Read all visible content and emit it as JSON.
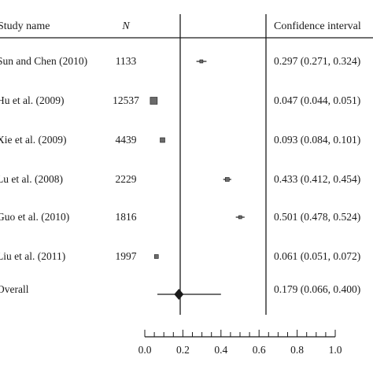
{
  "chart_data": {
    "type": "forest",
    "headers": {
      "study": "Study name",
      "n": "N",
      "ci": "Confidence interval"
    },
    "x_axis": {
      "range": [
        0,
        1
      ],
      "ticks": [
        "0.0",
        "0.2",
        "0.4",
        "0.6",
        "0.8",
        "1.0"
      ],
      "tick_values": [
        0,
        0.2,
        0.4,
        0.6,
        0.8,
        1.0
      ]
    },
    "studies": [
      {
        "name": "Sun and Chen (2010)",
        "n": "1133",
        "estimate": 0.297,
        "lower": 0.271,
        "upper": 0.324,
        "ci_text": "0.297 (0.271, 0.324)"
      },
      {
        "name": "Hu et al. (2009)",
        "n": "12537",
        "estimate": 0.047,
        "lower": 0.044,
        "upper": 0.051,
        "ci_text": "0.047 (0.044, 0.051)"
      },
      {
        "name": "Xie et al. (2009)",
        "n": "4439",
        "estimate": 0.093,
        "lower": 0.084,
        "upper": 0.101,
        "ci_text": "0.093 (0.084, 0.101)"
      },
      {
        "name": "Lu et al. (2008)",
        "n": "2229",
        "estimate": 0.433,
        "lower": 0.412,
        "upper": 0.454,
        "ci_text": "0.433 (0.412, 0.454)"
      },
      {
        "name": "Guo et al. (2010)",
        "n": "1816",
        "estimate": 0.501,
        "lower": 0.478,
        "upper": 0.524,
        "ci_text": "0.501 (0.478, 0.524)"
      },
      {
        "name": "Liu et al. (2011)",
        "n": "1997",
        "estimate": 0.061,
        "lower": 0.051,
        "upper": 0.072,
        "ci_text": "0.061 (0.051, 0.072)"
      }
    ],
    "overall": {
      "name": "Overall",
      "estimate": 0.179,
      "lower": 0.066,
      "upper": 0.4,
      "ci_text": "0.179 (0.066, 0.400)"
    },
    "colors": {
      "text": "#1a1a1a",
      "line": "#1a1a1a",
      "box": "#6b6b6b"
    }
  }
}
